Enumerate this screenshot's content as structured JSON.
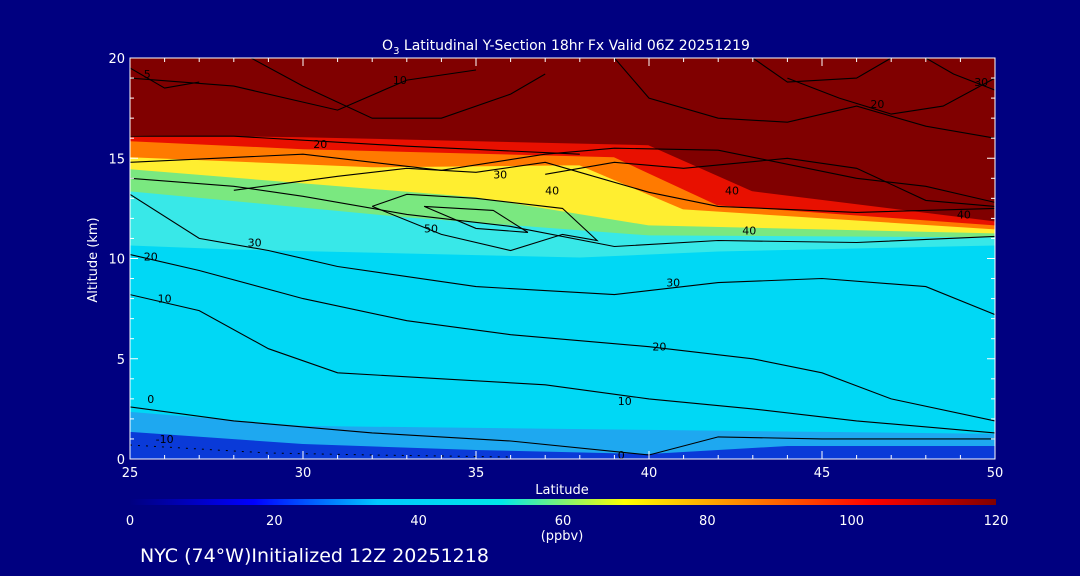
{
  "chart_data": {
    "type": "heatmap",
    "title_prefix": "O",
    "title_sub": "3",
    "title_rest": " Latitudinal Y-Section 18hr  Fx Valid 06Z 20251219",
    "xlabel": "Latitude",
    "ylabel": "Altitude (km)",
    "xlim": [
      25,
      50
    ],
    "ylim": [
      0,
      20
    ],
    "x_ticks": [
      "25",
      "30",
      "35",
      "40",
      "45",
      "50"
    ],
    "y_ticks": [
      "0",
      "5",
      "10",
      "15",
      "20"
    ],
    "colorbar": {
      "label": "(ppbv)",
      "range": [
        0,
        120
      ],
      "ticks": [
        "0",
        "20",
        "40",
        "60",
        "80",
        "100",
        "120"
      ],
      "colors": [
        "#000080",
        "#0000ff",
        "#00c8ff",
        "#00e8e8",
        "#ffff00",
        "#ff8000",
        "#ff0000",
        "#800000"
      ]
    },
    "bands": [
      {
        "name": "band-surface-blue",
        "color": "#0a3ad8",
        "value": 5,
        "points": [
          [
            25,
            0
          ],
          [
            30,
            0
          ],
          [
            40,
            0
          ],
          [
            50,
            0
          ],
          [
            50,
            0.8
          ],
          [
            44,
            0.8
          ],
          [
            40,
            0.4
          ],
          [
            35,
            0.6
          ],
          [
            30,
            0.9
          ],
          [
            25,
            1.5
          ]
        ]
      },
      {
        "name": "band-surface-mid",
        "color": "#1ea8f0",
        "value": 30,
        "points": [
          [
            25,
            1.5
          ],
          [
            30,
            0.9
          ],
          [
            35,
            0.6
          ],
          [
            40,
            0.4
          ],
          [
            44,
            0.8
          ],
          [
            50,
            0.8
          ],
          [
            50,
            1.4
          ],
          [
            40,
            1.6
          ],
          [
            30,
            1.8
          ],
          [
            25,
            2.5
          ]
        ]
      },
      {
        "name": "band-trop-cyan",
        "color": "#00d8f5",
        "value": 38,
        "points": [
          [
            25,
            2.5
          ],
          [
            30,
            1.8
          ],
          [
            40,
            1.6
          ],
          [
            50,
            1.4
          ],
          [
            50,
            10.8
          ],
          [
            42,
            10.5
          ],
          [
            38,
            10.2
          ],
          [
            33,
            10.4
          ],
          [
            28,
            10.6
          ],
          [
            25,
            10.8
          ]
        ]
      },
      {
        "name": "band-trop-lightcyan",
        "color": "#38e8e8",
        "value": 45,
        "points": [
          [
            25,
            10.8
          ],
          [
            28,
            10.6
          ],
          [
            33,
            10.4
          ],
          [
            38,
            10.2
          ],
          [
            42,
            10.5
          ],
          [
            50,
            10.8
          ],
          [
            50,
            11.2
          ],
          [
            40,
            11.3
          ],
          [
            33,
            12.2
          ],
          [
            25,
            13.5
          ]
        ]
      },
      {
        "name": "band-green",
        "color": "#7ae880",
        "value": 60,
        "points": [
          [
            25,
            13.5
          ],
          [
            33,
            12.2
          ],
          [
            40,
            11.3
          ],
          [
            50,
            11.2
          ],
          [
            50,
            11.4
          ],
          [
            40,
            11.8
          ],
          [
            35,
            13.2
          ],
          [
            25,
            14.6
          ]
        ]
      },
      {
        "name": "band-yellow",
        "color": "#ffee30",
        "value": 75,
        "points": [
          [
            25,
            14.6
          ],
          [
            35,
            13.2
          ],
          [
            40,
            11.8
          ],
          [
            50,
            11.4
          ],
          [
            50,
            11.6
          ],
          [
            41,
            12.6
          ],
          [
            38,
            14.8
          ],
          [
            32,
            14.7
          ],
          [
            25,
            15.2
          ]
        ]
      },
      {
        "name": "band-orange",
        "color": "#ff7a00",
        "value": 95,
        "points": [
          [
            25,
            15.2
          ],
          [
            32,
            14.7
          ],
          [
            38,
            14.8
          ],
          [
            41,
            12.6
          ],
          [
            50,
            11.6
          ],
          [
            50,
            11.8
          ],
          [
            42,
            12.8
          ],
          [
            39,
            15.2
          ],
          [
            30,
            15.6
          ],
          [
            25,
            16.0
          ]
        ]
      },
      {
        "name": "band-red",
        "color": "#e81000",
        "value": 110,
        "points": [
          [
            25,
            16.0
          ],
          [
            30,
            15.6
          ],
          [
            39,
            15.2
          ],
          [
            42,
            12.8
          ],
          [
            50,
            11.8
          ],
          [
            50,
            12.0
          ],
          [
            43,
            13.5
          ],
          [
            40,
            15.8
          ],
          [
            30,
            16.2
          ],
          [
            25,
            16.3
          ]
        ]
      },
      {
        "name": "band-strat-darkred",
        "color": "#800000",
        "value": 120,
        "points": [
          [
            25,
            16.3
          ],
          [
            30,
            16.2
          ],
          [
            40,
            15.8
          ],
          [
            43,
            13.5
          ],
          [
            50,
            12.0
          ],
          [
            50,
            20
          ],
          [
            25,
            20
          ]
        ]
      }
    ],
    "contours": [
      {
        "value": "-10",
        "style": "dash",
        "points": [
          [
            25,
            0.7
          ],
          [
            27,
            0.5
          ],
          [
            29,
            0.3
          ],
          [
            32,
            0.2
          ],
          [
            36,
            0.1
          ]
        ]
      },
      {
        "value": "0",
        "style": "solid",
        "points": [
          [
            25,
            2.6
          ],
          [
            28,
            1.9
          ],
          [
            32,
            1.3
          ],
          [
            36,
            0.9
          ],
          [
            40,
            0.2
          ],
          [
            42,
            1.1
          ],
          [
            45,
            1.0
          ],
          [
            50,
            1.0
          ]
        ]
      },
      {
        "value": "10",
        "style": "solid",
        "points": [
          [
            25,
            8.2
          ],
          [
            27,
            7.4
          ],
          [
            29,
            5.5
          ],
          [
            31,
            4.3
          ],
          [
            34,
            4.0
          ],
          [
            37,
            3.7
          ],
          [
            40,
            3.0
          ],
          [
            43,
            2.5
          ],
          [
            46,
            1.9
          ],
          [
            50,
            1.3
          ]
        ]
      },
      {
        "value": "20",
        "style": "solid",
        "points": [
          [
            25,
            10.2
          ],
          [
            27,
            9.4
          ],
          [
            30,
            8.0
          ],
          [
            33,
            6.9
          ],
          [
            36,
            6.2
          ],
          [
            40,
            5.6
          ],
          [
            43,
            5.0
          ],
          [
            45,
            4.3
          ],
          [
            47,
            3.0
          ],
          [
            50,
            1.9
          ]
        ]
      },
      {
        "value": "30",
        "style": "solid",
        "points": [
          [
            25,
            13.2
          ],
          [
            27,
            11.0
          ],
          [
            29,
            10.4
          ],
          [
            31,
            9.6
          ],
          [
            35,
            8.6
          ],
          [
            39,
            8.2
          ],
          [
            42,
            8.8
          ],
          [
            45,
            9.0
          ],
          [
            48,
            8.6
          ],
          [
            50,
            7.2
          ]
        ]
      },
      {
        "value": "40",
        "style": "solid",
        "points": [
          [
            25,
            14.0
          ],
          [
            28,
            13.6
          ],
          [
            30,
            13.1
          ],
          [
            33,
            12.2
          ],
          [
            36,
            11.6
          ],
          [
            39,
            10.6
          ],
          [
            42,
            10.9
          ],
          [
            46,
            10.8
          ],
          [
            50,
            11.1
          ]
        ]
      },
      {
        "value": "40",
        "style": "solid",
        "points": [
          [
            37,
            14.2
          ],
          [
            39,
            14.8
          ],
          [
            41,
            14.5
          ],
          [
            44,
            15.0
          ],
          [
            46,
            14.5
          ],
          [
            48,
            12.9
          ],
          [
            50,
            12.6
          ]
        ]
      },
      {
        "value": "30",
        "style": "solid",
        "points": [
          [
            28,
            13.4
          ],
          [
            31,
            14.1
          ],
          [
            33,
            14.5
          ],
          [
            35,
            14.3
          ],
          [
            37,
            14.8
          ],
          [
            38,
            14.3
          ],
          [
            40,
            13.3
          ],
          [
            42,
            12.6
          ],
          [
            46,
            12.3
          ],
          [
            50,
            12.5
          ]
        ]
      },
      {
        "value": "50",
        "style": "solid",
        "points": [
          [
            32,
            12.6
          ],
          [
            34,
            11.2
          ],
          [
            36,
            10.4
          ],
          [
            37.5,
            11.2
          ],
          [
            38.5,
            10.9
          ],
          [
            37.5,
            12.5
          ],
          [
            35,
            13.0
          ],
          [
            33,
            13.2
          ],
          [
            32,
            12.6
          ]
        ]
      },
      {
        "value": "50",
        "style": "solid",
        "points": [
          [
            33.5,
            12.6
          ],
          [
            35,
            11.5
          ],
          [
            36.5,
            11.3
          ],
          [
            35.5,
            12.4
          ],
          [
            33.5,
            12.6
          ]
        ]
      },
      {
        "value": "20",
        "style": "solid",
        "points": [
          [
            25,
            14.8
          ],
          [
            30,
            15.2
          ],
          [
            34,
            14.4
          ],
          [
            37,
            15.2
          ],
          [
            39,
            15.5
          ],
          [
            42,
            15.4
          ],
          [
            46,
            14.0
          ],
          [
            48,
            13.6
          ],
          [
            50,
            12.8
          ]
        ]
      },
      {
        "value": "20",
        "style": "solid",
        "points": [
          [
            25,
            16.1
          ],
          [
            28,
            16.1
          ],
          [
            31,
            15.8
          ],
          [
            33,
            15.6
          ],
          [
            38,
            15.2
          ]
        ]
      },
      {
        "value": "20",
        "style": "solid",
        "points": [
          [
            44,
            19.0
          ],
          [
            45.5,
            18.0
          ],
          [
            47,
            17.2
          ],
          [
            48.5,
            17.6
          ],
          [
            50,
            19.0
          ]
        ]
      },
      {
        "value": "10",
        "style": "solid",
        "points": [
          [
            25,
            19.0
          ],
          [
            28,
            18.6
          ],
          [
            31,
            17.4
          ],
          [
            33,
            18.9
          ],
          [
            35,
            19.4
          ]
        ]
      },
      {
        "value": "5",
        "style": "solid",
        "points": [
          [
            25,
            19.5
          ],
          [
            26,
            18.5
          ],
          [
            27,
            18.8
          ]
        ]
      },
      {
        "value": "30",
        "style": "solid",
        "points": [
          [
            48,
            20.0
          ],
          [
            48.8,
            19.2
          ],
          [
            50,
            18.4
          ]
        ]
      },
      {
        "value": "",
        "style": "solid",
        "points": [
          [
            28.5,
            20.0
          ],
          [
            30,
            18.6
          ],
          [
            32,
            17.0
          ],
          [
            34,
            17.0
          ],
          [
            36,
            18.2
          ],
          [
            37,
            19.2
          ]
        ]
      },
      {
        "value": "",
        "style": "solid",
        "points": [
          [
            39,
            20.0
          ],
          [
            40,
            18.0
          ],
          [
            42,
            17.0
          ],
          [
            44,
            16.8
          ],
          [
            46,
            17.6
          ],
          [
            48,
            16.6
          ],
          [
            50,
            16.0
          ]
        ]
      },
      {
        "value": "",
        "style": "solid",
        "points": [
          [
            43,
            20.0
          ],
          [
            44,
            18.8
          ],
          [
            46,
            19.0
          ],
          [
            47,
            20.0
          ]
        ]
      }
    ],
    "contour_labels": [
      {
        "text": "30",
        "at": [
          28.6,
          10.8
        ]
      },
      {
        "text": "20",
        "at": [
          25.6,
          10.1
        ]
      },
      {
        "text": "10",
        "at": [
          26.0,
          8.0
        ]
      },
      {
        "text": "0",
        "at": [
          25.6,
          3.0
        ]
      },
      {
        "text": "-10",
        "at": [
          26.0,
          1.0
        ]
      },
      {
        "text": "20",
        "at": [
          30.5,
          15.7
        ]
      },
      {
        "text": "10",
        "at": [
          32.8,
          18.9
        ]
      },
      {
        "text": "5",
        "at": [
          25.5,
          19.2
        ]
      },
      {
        "text": "30",
        "at": [
          35.7,
          14.2
        ]
      },
      {
        "text": "40",
        "at": [
          37.2,
          13.4
        ]
      },
      {
        "text": "50",
        "at": [
          33.7,
          11.5
        ]
      },
      {
        "text": "40",
        "at": [
          42.4,
          13.4
        ]
      },
      {
        "text": "40",
        "at": [
          42.9,
          11.4
        ]
      },
      {
        "text": "40",
        "at": [
          49.1,
          12.2
        ]
      },
      {
        "text": "30",
        "at": [
          40.7,
          8.8
        ]
      },
      {
        "text": "20",
        "at": [
          40.3,
          5.6
        ]
      },
      {
        "text": "10",
        "at": [
          39.3,
          2.9
        ]
      },
      {
        "text": "0",
        "at": [
          39.2,
          0.2
        ]
      },
      {
        "text": "20",
        "at": [
          46.6,
          17.7
        ]
      },
      {
        "text": "30",
        "at": [
          49.6,
          18.8
        ]
      }
    ]
  },
  "footer": {
    "init_text": "NYC (74°W)Initialized 12Z 20251218"
  }
}
